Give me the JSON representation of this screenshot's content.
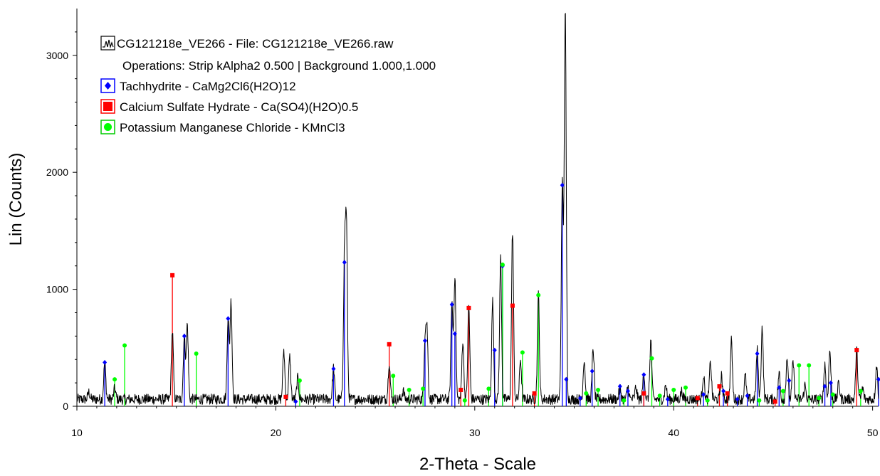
{
  "chart_data": {
    "type": "line",
    "title": "",
    "xlabel": "2-Theta - Scale",
    "ylabel": "Lin (Counts)",
    "xlim": [
      10,
      50.3
    ],
    "ylim": [
      0,
      3400
    ],
    "x_ticks": [
      10,
      20,
      30,
      40,
      50
    ],
    "y_ticks": [
      0,
      1000,
      2000,
      3000
    ],
    "grid": false,
    "legend_position": "top-left",
    "measured": {
      "name": "CG121218e_VE266 - File: CG121218e_VE266.raw",
      "subtitle": "Operations: Strip kAlpha2 0.500 | Background 1.000,1.000",
      "color": "#000000",
      "baseline": 60,
      "peaks": [
        {
          "x": 10.6,
          "y": 120
        },
        {
          "x": 11.4,
          "y": 380
        },
        {
          "x": 11.9,
          "y": 150
        },
        {
          "x": 14.8,
          "y": 640
        },
        {
          "x": 15.4,
          "y": 600
        },
        {
          "x": 15.55,
          "y": 700
        },
        {
          "x": 17.6,
          "y": 760
        },
        {
          "x": 17.75,
          "y": 900
        },
        {
          "x": 20.4,
          "y": 480
        },
        {
          "x": 20.7,
          "y": 420
        },
        {
          "x": 21.1,
          "y": 240
        },
        {
          "x": 22.9,
          "y": 330
        },
        {
          "x": 23.45,
          "y": 1230
        },
        {
          "x": 23.55,
          "y": 1500
        },
        {
          "x": 25.7,
          "y": 380
        },
        {
          "x": 26.4,
          "y": 130
        },
        {
          "x": 27.5,
          "y": 560
        },
        {
          "x": 27.6,
          "y": 630
        },
        {
          "x": 28.85,
          "y": 880
        },
        {
          "x": 29.0,
          "y": 1110
        },
        {
          "x": 29.4,
          "y": 560
        },
        {
          "x": 29.7,
          "y": 860
        },
        {
          "x": 30.9,
          "y": 900
        },
        {
          "x": 31.3,
          "y": 1270
        },
        {
          "x": 31.9,
          "y": 1500
        },
        {
          "x": 32.3,
          "y": 400
        },
        {
          "x": 33.2,
          "y": 950
        },
        {
          "x": 34.4,
          "y": 1890
        },
        {
          "x": 34.55,
          "y": 3380
        },
        {
          "x": 35.5,
          "y": 400
        },
        {
          "x": 35.95,
          "y": 500
        },
        {
          "x": 37.3,
          "y": 160
        },
        {
          "x": 37.7,
          "y": 170
        },
        {
          "x": 38.1,
          "y": 160
        },
        {
          "x": 38.5,
          "y": 290
        },
        {
          "x": 38.85,
          "y": 560
        },
        {
          "x": 39.6,
          "y": 180
        },
        {
          "x": 40.4,
          "y": 130
        },
        {
          "x": 41.5,
          "y": 270
        },
        {
          "x": 41.85,
          "y": 380
        },
        {
          "x": 42.4,
          "y": 260
        },
        {
          "x": 42.9,
          "y": 560
        },
        {
          "x": 43.6,
          "y": 260
        },
        {
          "x": 44.2,
          "y": 480
        },
        {
          "x": 44.45,
          "y": 680
        },
        {
          "x": 45.3,
          "y": 280
        },
        {
          "x": 45.7,
          "y": 420
        },
        {
          "x": 46.0,
          "y": 380
        },
        {
          "x": 46.6,
          "y": 180
        },
        {
          "x": 47.6,
          "y": 360
        },
        {
          "x": 47.85,
          "y": 480
        },
        {
          "x": 48.3,
          "y": 200
        },
        {
          "x": 49.2,
          "y": 480
        },
        {
          "x": 49.5,
          "y": 150
        },
        {
          "x": 50.2,
          "y": 350
        }
      ]
    },
    "series": [
      {
        "name": "Tachhydrite - CaMg2Cl6(H2O)12",
        "color": "#0000ff",
        "marker": "diamond",
        "x": [
          11.4,
          15.4,
          17.6,
          21.0,
          22.9,
          23.45,
          27.5,
          28.85,
          29.0,
          31.0,
          31.4,
          34.4,
          34.6,
          35.3,
          35.9,
          37.3,
          37.7,
          38.5,
          39.7,
          41.5,
          42.5,
          43.2,
          43.7,
          44.2,
          45.3,
          45.8,
          47.6,
          47.9,
          50.3
        ],
        "values": [
          375,
          600,
          750,
          40,
          320,
          1230,
          560,
          870,
          620,
          480,
          1200,
          1890,
          230,
          70,
          300,
          170,
          130,
          270,
          60,
          100,
          130,
          60,
          90,
          450,
          160,
          220,
          170,
          200,
          230
        ]
      },
      {
        "name": "Calcium Sulfate Hydrate - Ca(SO4)(H2O)0.5",
        "color": "#ff0000",
        "marker": "square",
        "x": [
          14.8,
          20.5,
          25.7,
          29.3,
          29.7,
          31.9,
          33.0,
          38.5,
          41.2,
          42.3,
          42.7,
          45.1,
          49.2
        ],
        "values": [
          1120,
          80,
          530,
          140,
          840,
          860,
          110,
          110,
          70,
          170,
          110,
          40,
          480
        ]
      },
      {
        "name": "Potassium Manganese Chloride - KMnCl3",
        "color": "#00ff00",
        "marker": "circle",
        "x": [
          11.9,
          12.4,
          16.0,
          21.2,
          25.9,
          26.7,
          27.4,
          29.5,
          30.7,
          31.4,
          32.4,
          33.2,
          35.6,
          36.2,
          37.5,
          38.9,
          39.3,
          40.0,
          40.6,
          41.7,
          44.3,
          45.5,
          46.3,
          46.8,
          47.3,
          48.0,
          49.4
        ],
        "values": [
          230,
          520,
          450,
          220,
          260,
          140,
          150,
          50,
          150,
          1210,
          460,
          950,
          110,
          140,
          50,
          410,
          90,
          140,
          160,
          50,
          50,
          130,
          350,
          350,
          70,
          100,
          130
        ]
      }
    ]
  }
}
